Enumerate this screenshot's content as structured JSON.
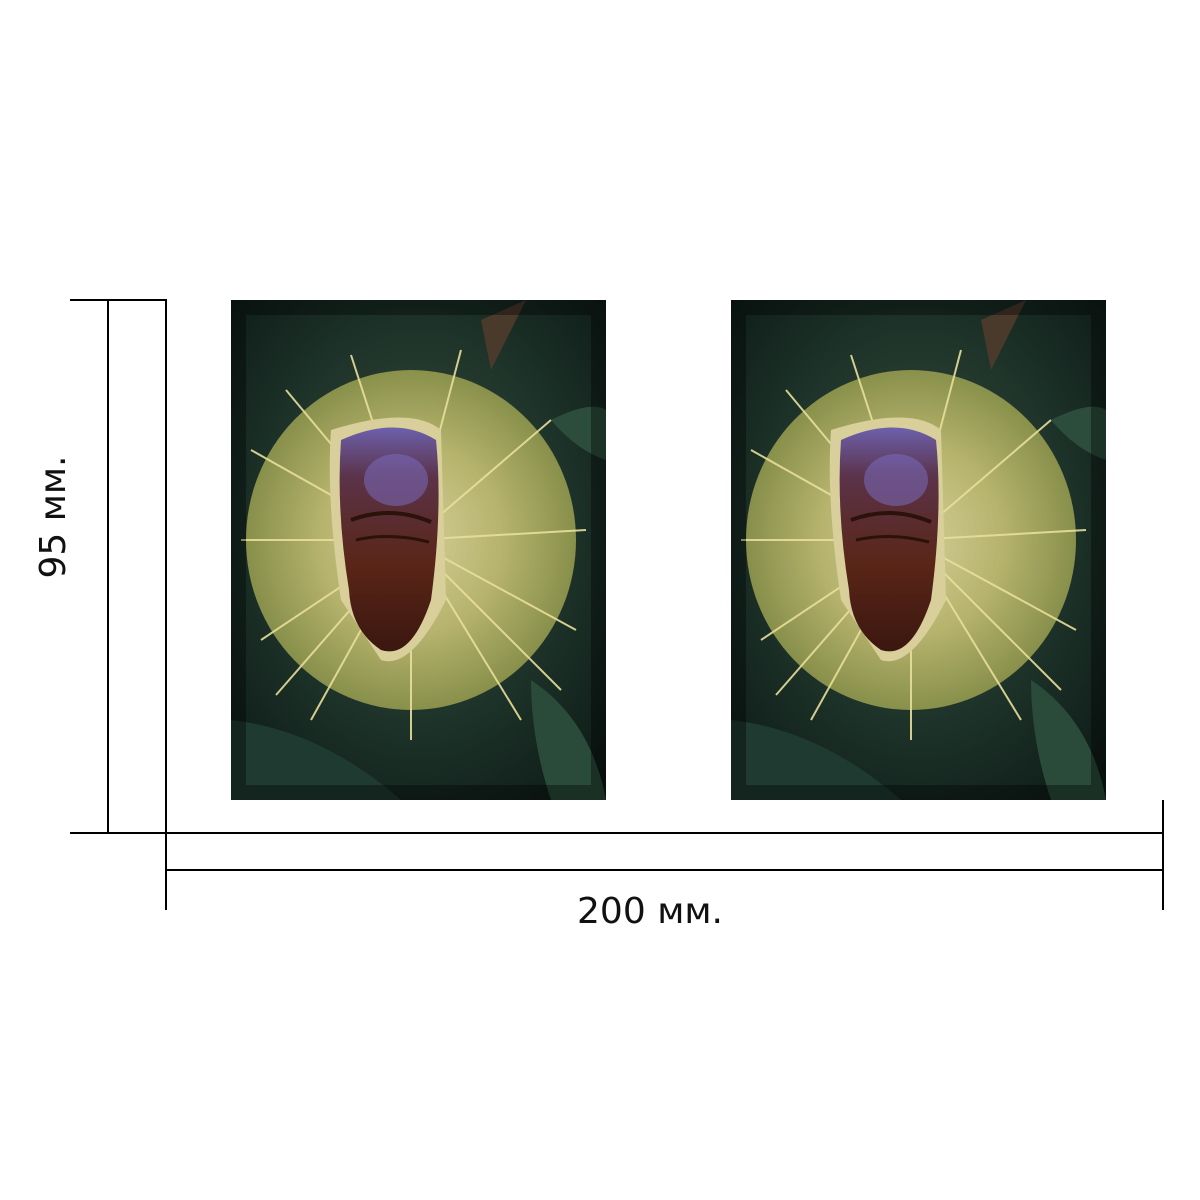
{
  "dimensions": {
    "width_label": "200 мм.",
    "height_label": "95 мм."
  },
  "photos": [
    {
      "subject": "chestnut-burr-photo"
    },
    {
      "subject": "chestnut-burr-photo"
    }
  ],
  "colors": {
    "line": "#000000",
    "background": "#ffffff",
    "spikes": "#d9d48a",
    "nut": "#5a2a1c",
    "nut_highlight": "#6b5aa8",
    "foliage": "#1d3a2e"
  }
}
